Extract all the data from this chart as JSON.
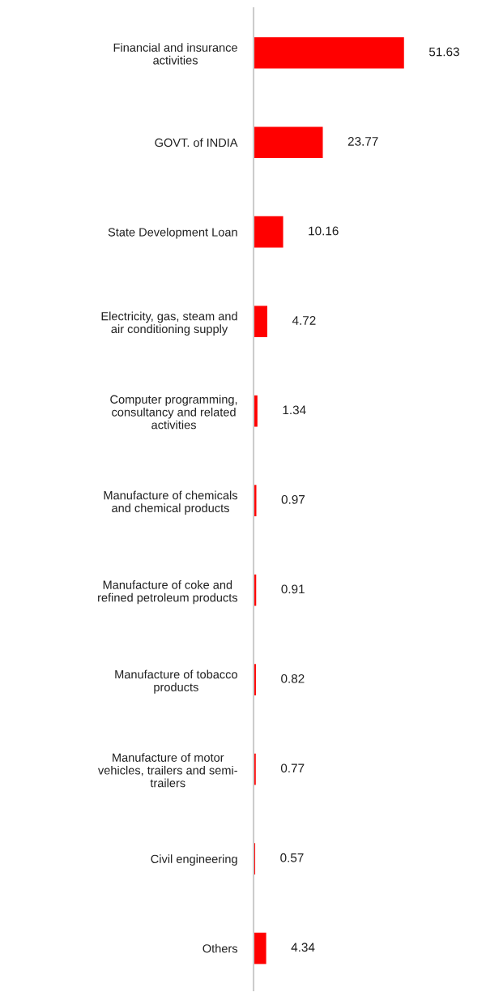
{
  "chart_data": {
    "type": "bar",
    "orientation": "horizontal",
    "categories": [
      "Financial and insurance\nactivities",
      "GOVT. of INDIA",
      "State Development Loan",
      "Electricity, gas, steam and\nair conditioning supply",
      "Computer programming,\nconsultancy and related\nactivities",
      "Manufacture of chemicals\nand chemical products",
      "Manufacture of coke and\nrefined petroleum products",
      "Manufacture of tobacco\nproducts",
      "Manufacture of motor\nvehicles, trailers and semi-\ntrailers",
      "Civil engineering",
      "Others"
    ],
    "values": [
      51.63,
      23.77,
      10.16,
      4.72,
      1.34,
      0.97,
      0.91,
      0.82,
      0.77,
      0.57,
      4.34
    ],
    "color": "#ff0000",
    "data_labels": true,
    "tick_labels": "y",
    "grid": false,
    "legend": false
  }
}
